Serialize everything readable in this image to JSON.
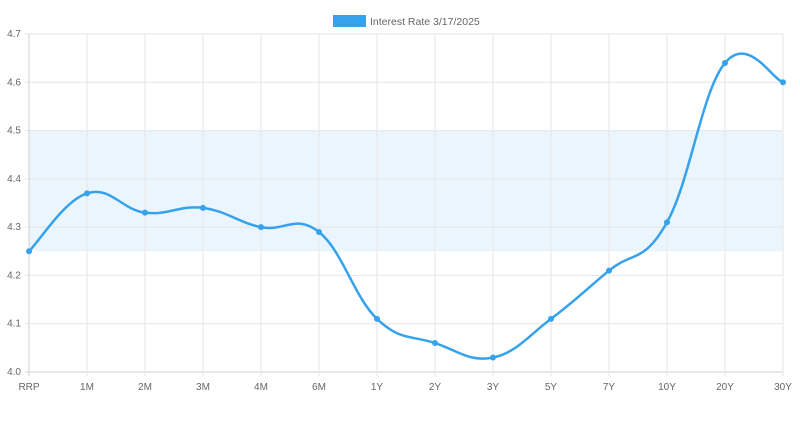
{
  "chart_data": {
    "type": "line",
    "categories": [
      "RRP",
      "1M",
      "2M",
      "3M",
      "4M",
      "6M",
      "1Y",
      "2Y",
      "3Y",
      "5Y",
      "7Y",
      "10Y",
      "20Y",
      "30Y"
    ],
    "series": [
      {
        "name": "Interest Rate 3/17/2025",
        "values": [
          4.25,
          4.37,
          4.33,
          4.34,
          4.3,
          4.29,
          4.11,
          4.06,
          4.03,
          4.11,
          4.21,
          4.31,
          4.64,
          4.6
        ],
        "color": "#36a2eb"
      }
    ],
    "ylim": [
      4.0,
      4.7
    ],
    "yticks": [
      "4.0",
      "4.1",
      "4.2",
      "4.3",
      "4.4",
      "4.5",
      "4.6",
      "4.7"
    ],
    "shaded_band": {
      "from": 4.25,
      "to": 4.5,
      "color": "#eaf5fd"
    },
    "grid": true,
    "legend": "top",
    "title": "",
    "xlabel": "",
    "ylabel": ""
  }
}
